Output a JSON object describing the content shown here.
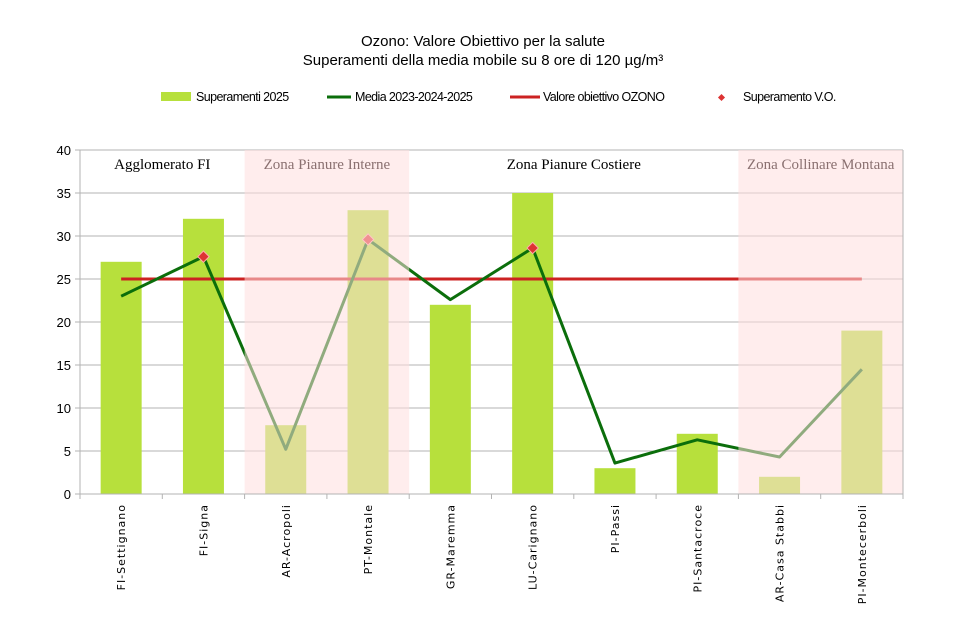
{
  "chart_data": {
    "type": "bar",
    "title": "Ozono: Valore Obiettivo per la salute",
    "subtitle": "Superamenti della media mobile su 8 ore di 120 µg/m³",
    "categories": [
      "FI-Settignano",
      "FI-Signa",
      "AR-Acropoli",
      "PT-Montale",
      "GR-Maremma",
      "LU-Carignano",
      "PI-Passi",
      "PI-Santacroce",
      "AR-Casa Stabbi",
      "PI-Montecerboli"
    ],
    "ylim": [
      0,
      40
    ],
    "yticks": [
      0,
      5,
      10,
      15,
      20,
      25,
      30,
      35,
      40
    ],
    "grid": true,
    "legend_position": "top",
    "series": [
      {
        "name": "Superamenti 2025",
        "kind": "bar",
        "color": "#b7e03c",
        "values": [
          27,
          32,
          8,
          33,
          22,
          35,
          3,
          7,
          2,
          19
        ]
      },
      {
        "name": "Media 2023-2024-2025",
        "kind": "line",
        "color": "#0b6e0b",
        "values": [
          23,
          27.6,
          5.2,
          29.6,
          22.6,
          28.6,
          3.6,
          6.3,
          4.3,
          14.5
        ]
      },
      {
        "name": "Valore obiettivo OZONO",
        "kind": "line",
        "color": "#cc2222",
        "values": [
          25,
          25,
          25,
          25,
          25,
          25,
          25,
          25,
          25,
          25
        ]
      },
      {
        "name": "Superamento V.O.",
        "kind": "marker",
        "color": "#dd3333",
        "values": [
          null,
          27.6,
          null,
          29.6,
          null,
          28.6,
          null,
          null,
          null,
          null
        ]
      }
    ],
    "zones": [
      {
        "label": "Agglomerato FI",
        "from": 0,
        "to": 1,
        "shaded": false
      },
      {
        "label": "Zona Pianure Interne",
        "from": 2,
        "to": 3,
        "shaded": true
      },
      {
        "label": "Zona Pianure  Costiere",
        "from": 4,
        "to": 7,
        "shaded": false
      },
      {
        "label": "Zona Collinare Montana",
        "from": 8,
        "to": 9,
        "shaded": true
      }
    ],
    "zone_shade_color": "#ffdede"
  }
}
